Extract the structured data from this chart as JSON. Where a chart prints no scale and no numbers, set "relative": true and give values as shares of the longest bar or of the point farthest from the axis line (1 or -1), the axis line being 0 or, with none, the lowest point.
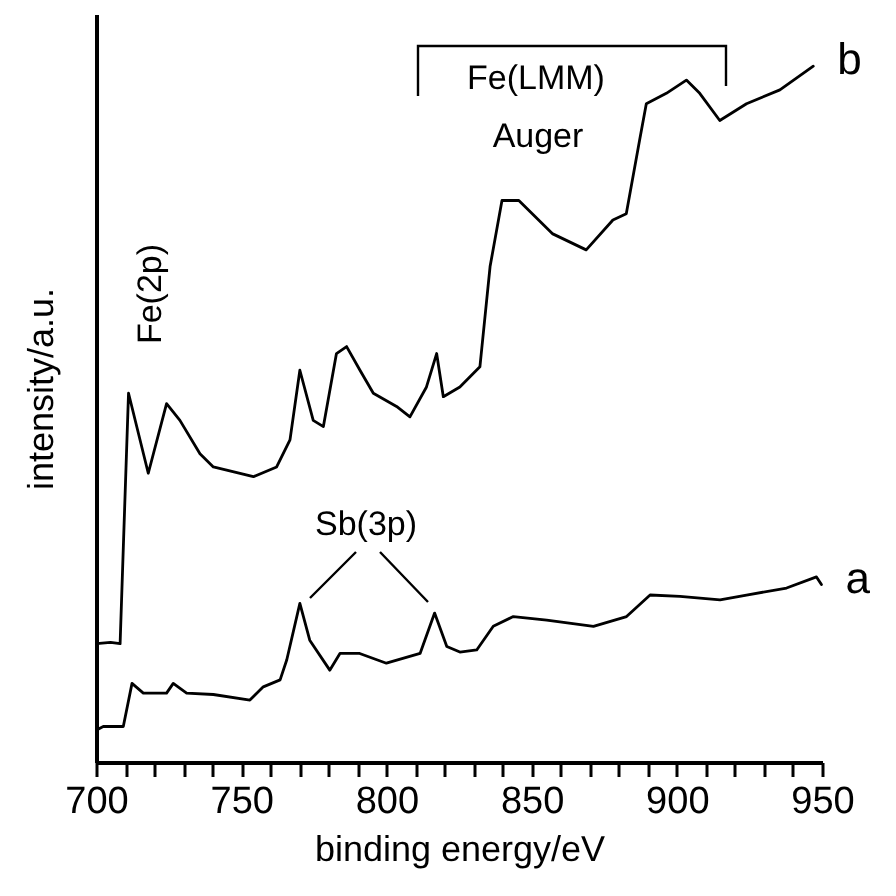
{
  "chart_data": {
    "type": "line",
    "xlabel": "binding energy/eV",
    "ylabel": "intensity/a.u.",
    "relative": true,
    "xlim": [
      700,
      950
    ],
    "xticks": [
      700,
      {
        "value": 710,
        "label": null
      },
      {
        "value": 720,
        "label": null
      },
      {
        "value": 730,
        "label": null
      },
      {
        "value": 740,
        "label": null
      },
      750,
      {
        "value": 760,
        "label": null
      },
      {
        "value": 770,
        "label": null
      },
      {
        "value": 780,
        "label": null
      },
      {
        "value": 790,
        "label": null
      },
      800,
      {
        "value": 810,
        "label": null
      },
      {
        "value": 820,
        "label": null
      },
      {
        "value": 830,
        "label": null
      },
      {
        "value": 840,
        "label": null
      },
      850,
      {
        "value": 860,
        "label": null
      },
      {
        "value": 870,
        "label": null
      },
      {
        "value": 880,
        "label": null
      },
      {
        "value": 890,
        "label": null
      },
      900,
      {
        "value": 910,
        "label": null
      },
      {
        "value": 920,
        "label": null
      },
      {
        "value": 930,
        "label": null
      },
      {
        "value": 940,
        "label": null
      },
      950
    ],
    "series": [
      {
        "name": "a",
        "color": "#000000",
        "x": [
          700.2,
          702.5,
          709.4,
          712.4,
          716.3,
          724.3,
          726.6,
          731.2,
          740.4,
          753,
          757.6,
          763.4,
          765.7,
          770.2,
          773.6,
          780.5,
          784,
          790.8,
          800,
          811.6,
          816.6,
          820.8,
          825.3,
          831.1,
          836.8,
          843.7,
          855.2,
          871.3,
          882.7,
          890.8,
          901.1,
          914.9,
          924,
          937.8,
          948.1,
          949.8
        ],
        "values": [
          0.046,
          0.051,
          0.051,
          0.113,
          0.099,
          0.099,
          0.113,
          0.099,
          0.097,
          0.089,
          0.108,
          0.118,
          0.147,
          0.228,
          0.175,
          0.132,
          0.156,
          0.156,
          0.142,
          0.156,
          0.214,
          0.166,
          0.158,
          0.161,
          0.195,
          0.209,
          0.204,
          0.195,
          0.209,
          0.24,
          0.238,
          0.233,
          0.24,
          0.25,
          0.266,
          0.255
        ]
      },
      {
        "name": "b",
        "color": "#000000",
        "x": [
          700.2,
          705,
          708.3,
          709.5,
          711.2,
          718,
          724.3,
          728.9,
          735.8,
          740.4,
          754.2,
          762.2,
          766.8,
          770.2,
          774.8,
          778.3,
          782.8,
          786.3,
          790.9,
          795.5,
          803.5,
          808.1,
          813.8,
          817.3,
          819.6,
          825.3,
          832.2,
          835.7,
          839.8,
          845.6,
          857.3,
          868.8,
          878,
          882.6,
          887.2,
          889.5,
          896.4,
          903.3,
          907.9,
          914.8,
          924,
          935.5,
          947
        ],
        "values": [
          0.17,
          0.172,
          0.17,
          0.32,
          0.53,
          0.415,
          0.515,
          0.491,
          0.443,
          0.424,
          0.41,
          0.424,
          0.463,
          0.563,
          0.491,
          0.482,
          0.587,
          0.597,
          0.563,
          0.53,
          0.511,
          0.496,
          0.539,
          0.587,
          0.525,
          0.539,
          0.568,
          0.712,
          0.807,
          0.807,
          0.759,
          0.736,
          0.779,
          0.788,
          0.894,
          0.946,
          0.961,
          0.98,
          0.961,
          0.922,
          0.946,
          0.966,
          1.0
        ]
      }
    ],
    "annotations": [
      "Fe(2p)",
      "Fe(LMM)",
      "Auger",
      "Sb(3p)"
    ]
  }
}
